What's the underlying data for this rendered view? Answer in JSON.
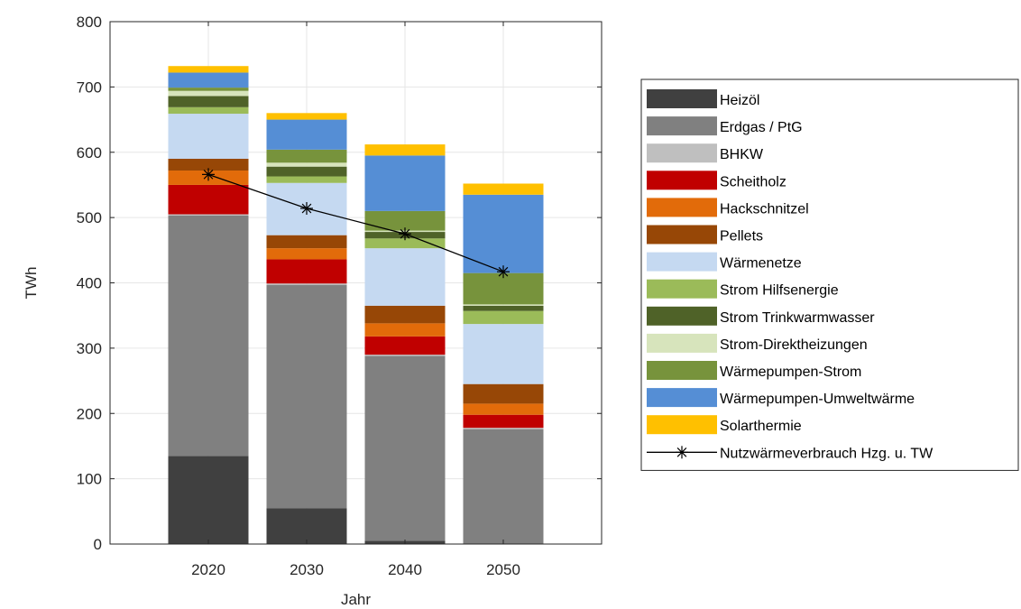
{
  "chart_data": {
    "type": "bar",
    "stacked": true,
    "categories": [
      "2020",
      "2030",
      "2040",
      "2050"
    ],
    "xlabel": "Jahr",
    "ylabel": "TWh",
    "ylim": [
      0,
      800
    ],
    "yticks": [
      0,
      100,
      200,
      300,
      400,
      500,
      600,
      700,
      800
    ],
    "grid": true,
    "legend_position": "right",
    "series": [
      {
        "name": "Heizöl",
        "color": "#404040",
        "values": [
          135,
          55,
          5,
          0
        ]
      },
      {
        "name": "Erdgas / PtG",
        "color": "#808080",
        "values": [
          368,
          342,
          283,
          176
        ]
      },
      {
        "name": "BHKW",
        "color": "#bfbfbf",
        "values": [
          2,
          2,
          2,
          2
        ]
      },
      {
        "name": "Scheitholz",
        "color": "#c00000",
        "values": [
          45,
          37,
          28,
          20
        ]
      },
      {
        "name": "Hackschnitzel",
        "color": "#e26b0a",
        "values": [
          22,
          17,
          20,
          17
        ]
      },
      {
        "name": "Pellets",
        "color": "#974706",
        "values": [
          18,
          20,
          27,
          30
        ]
      },
      {
        "name": "Wärmenetze",
        "color": "#c5d9f1",
        "values": [
          69,
          80,
          88,
          92
        ]
      },
      {
        "name": "Strom Hilfsenergie",
        "color": "#9bbb59",
        "values": [
          10,
          10,
          15,
          20
        ]
      },
      {
        "name": "Strom Trinkwarmwasser",
        "color": "#4f6228",
        "values": [
          17,
          15,
          10,
          8
        ]
      },
      {
        "name": "Strom-Direktheizungen",
        "color": "#d7e4bc",
        "values": [
          8,
          6,
          2,
          2
        ]
      },
      {
        "name": "Wärmepumpen-Strom",
        "color": "#77933c",
        "values": [
          5,
          20,
          30,
          48
        ]
      },
      {
        "name": "Wärmepumpen-Umweltwärme",
        "color": "#558ed5",
        "values": [
          23,
          46,
          85,
          120
        ]
      },
      {
        "name": "Solarthermie",
        "color": "#ffc000",
        "values": [
          10,
          10,
          17,
          17
        ]
      }
    ],
    "line_series": {
      "name": "Nutzwärmeverbrauch Hzg. u. TW",
      "color": "#000000",
      "marker": "asterisk",
      "values": [
        566,
        514,
        475,
        417
      ]
    }
  }
}
